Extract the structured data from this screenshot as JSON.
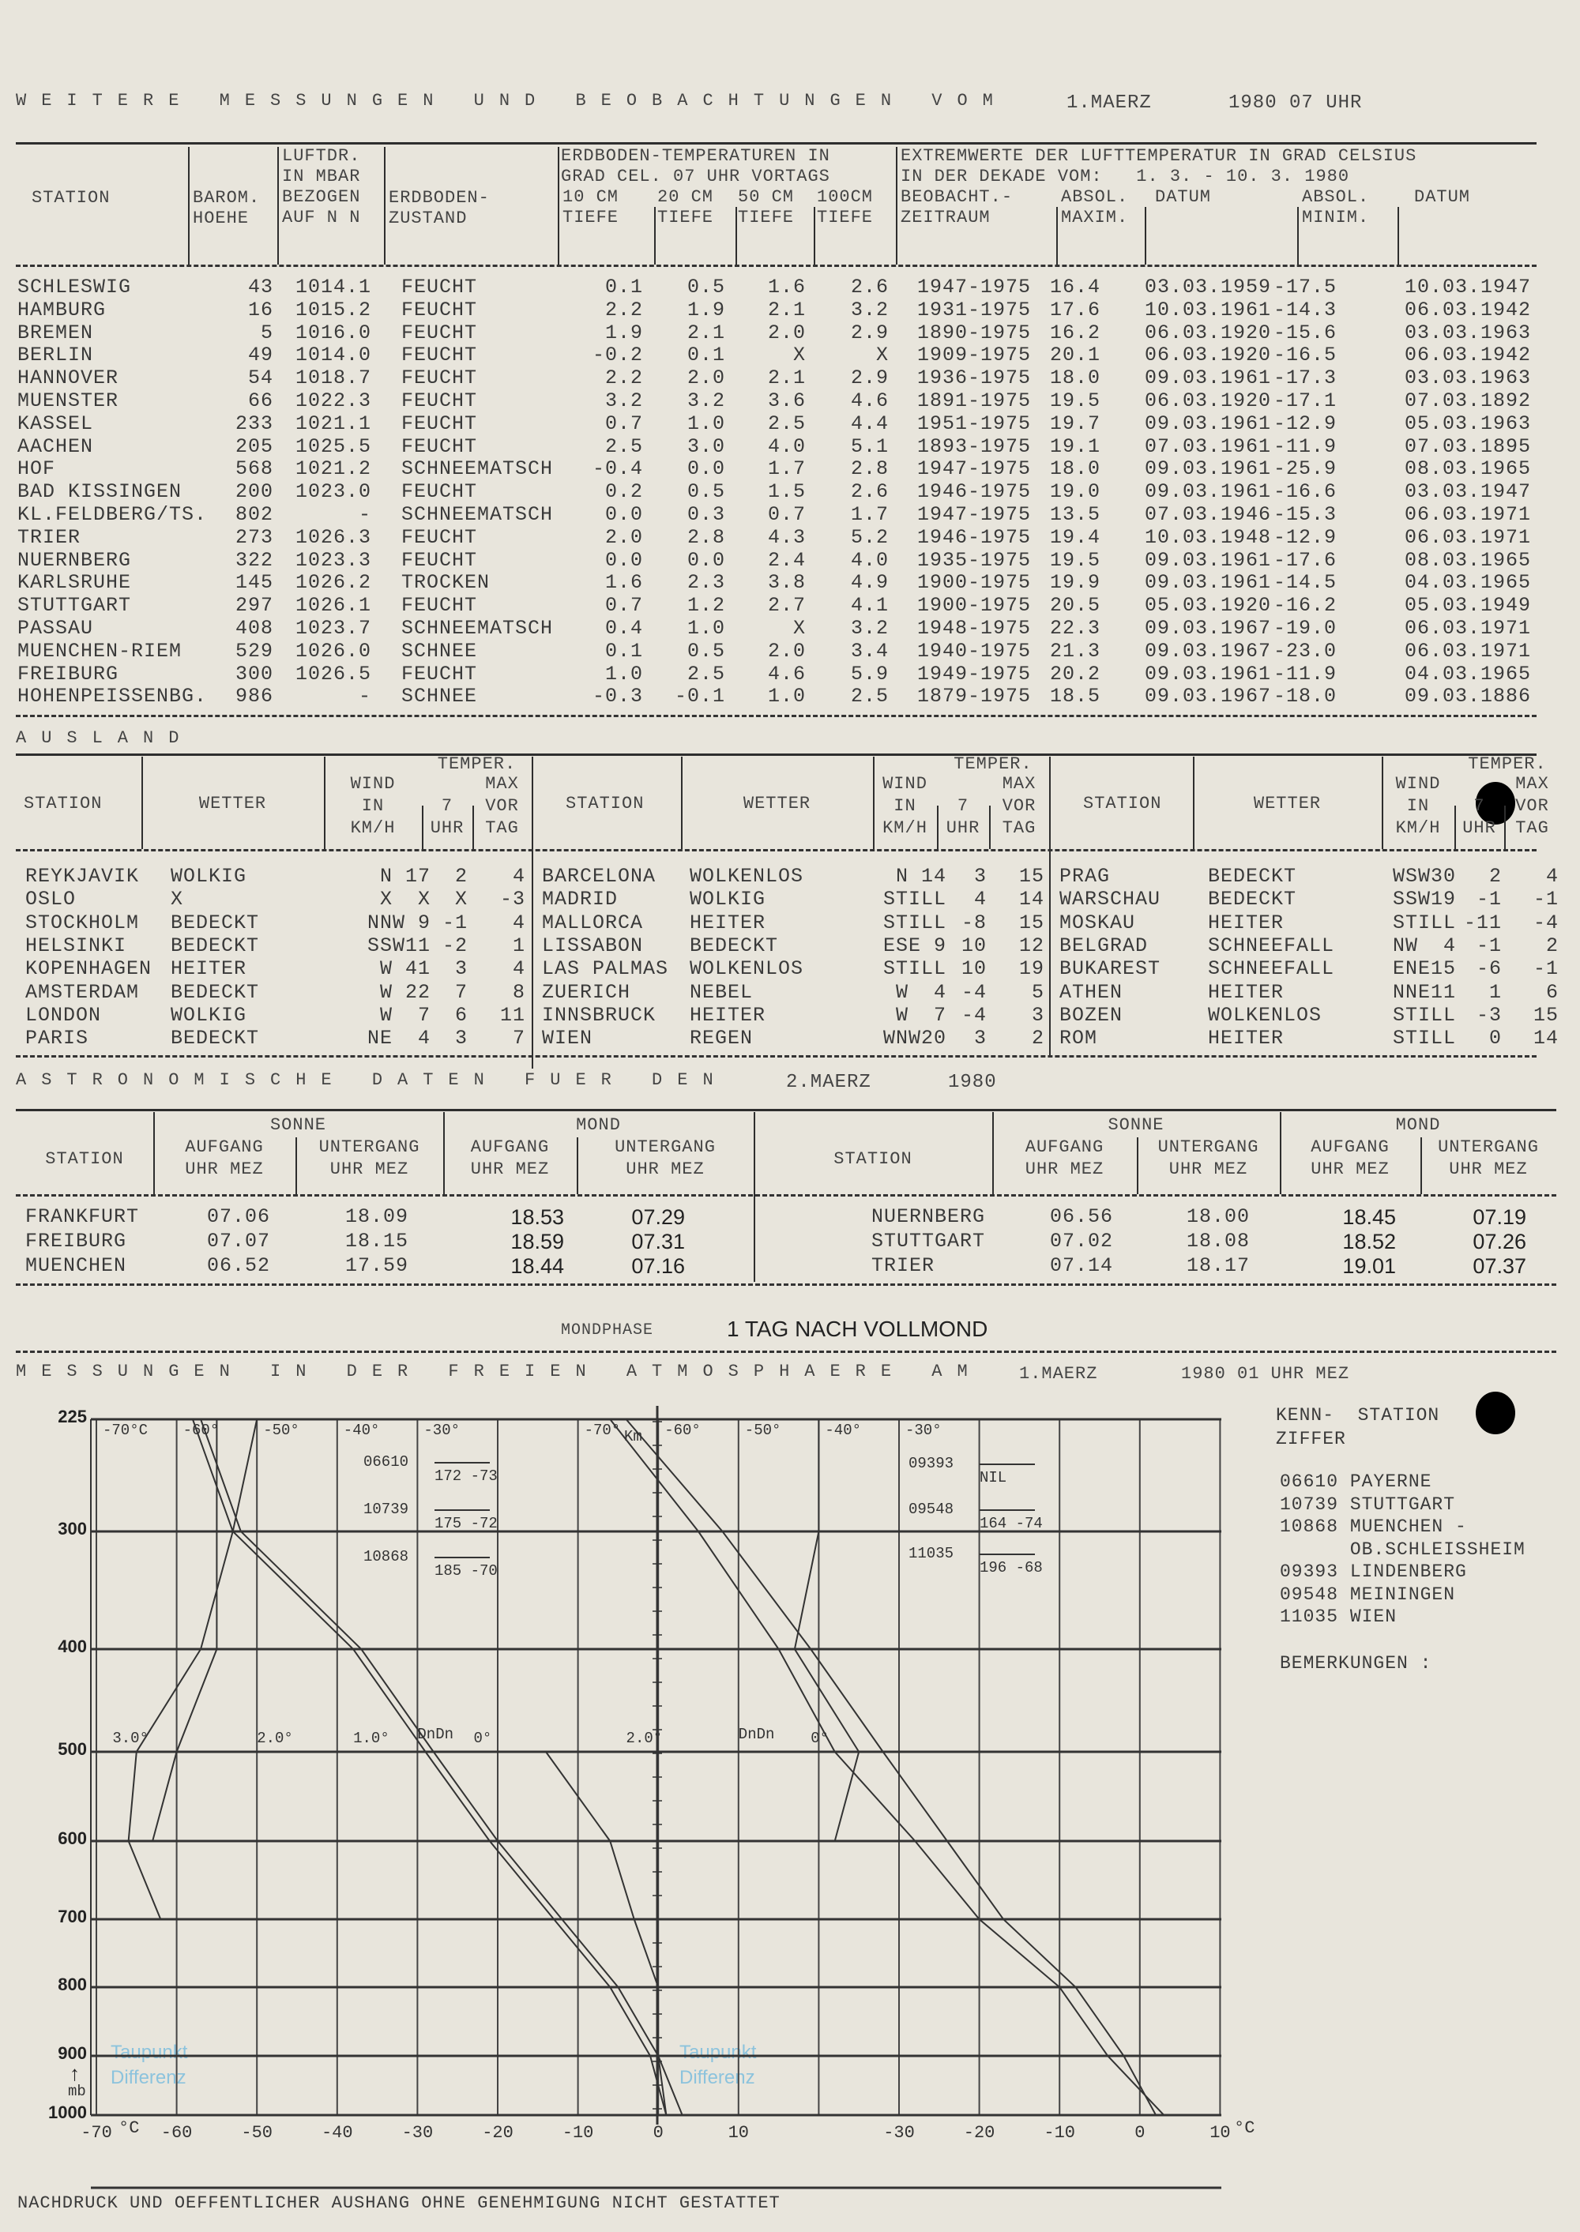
{
  "header": {
    "title": "WEITERE MESSUNGEN UND BEOBACHTUNGEN VOM",
    "date": "1.MAERZ",
    "time": "1980 07 UHR"
  },
  "inland": {
    "headers": {
      "station": "STATION",
      "baro": [
        "BAROM.",
        "HOEHE"
      ],
      "luftdruck": [
        "LUFTDR.",
        "IN MBAR",
        "BEZOGEN",
        "AUF N N"
      ],
      "zustand": [
        "ERDBODEN-",
        "ZUSTAND"
      ],
      "erdboden_title": [
        "ERDBODEN-TEMPERATUREN IN",
        "GRAD CEL. 07 UHR VORTAGS"
      ],
      "depths": [
        [
          "10 CM",
          "TIEFE"
        ],
        [
          "20 CM",
          "TIEFE"
        ],
        [
          "50 CM",
          "TIEFE"
        ],
        [
          "100CM",
          "TIEFE"
        ]
      ],
      "extrem_title": [
        "EXTREMWERTE DER LUFTTEMPERATUR IN GRAD CELSIUS",
        "IN DER DEKADE VOM:   1. 3. - 10. 3. 1980"
      ],
      "zeitraum": [
        "BEOBACHT.-",
        "ZEITRAUM"
      ],
      "max": [
        "ABSOL.",
        "MAXIM."
      ],
      "datum1": "DATUM",
      "min": [
        "ABSOL.",
        "MINIM."
      ],
      "datum2": "DATUM"
    },
    "rows": [
      [
        "SCHLESWIG",
        "43",
        "1014.1",
        "FEUCHT",
        "0.1",
        "0.5",
        "1.6",
        "2.6",
        "1947-1975",
        "16.4",
        "03.03.1959",
        "-17.5",
        "10.03.1947"
      ],
      [
        "HAMBURG",
        "16",
        "1015.2",
        "FEUCHT",
        "2.2",
        "1.9",
        "2.1",
        "3.2",
        "1931-1975",
        "17.6",
        "10.03.1961",
        "-14.3",
        "06.03.1942"
      ],
      [
        "BREMEN",
        "5",
        "1016.0",
        "FEUCHT",
        "1.9",
        "2.1",
        "2.0",
        "2.9",
        "1890-1975",
        "16.2",
        "06.03.1920",
        "-15.6",
        "03.03.1963"
      ],
      [
        "BERLIN",
        "49",
        "1014.0",
        "FEUCHT",
        "-0.2",
        "0.1",
        "X",
        "X",
        "1909-1975",
        "20.1",
        "06.03.1920",
        "-16.5",
        "06.03.1942"
      ],
      [
        "HANNOVER",
        "54",
        "1018.7",
        "FEUCHT",
        "2.2",
        "2.0",
        "2.1",
        "2.9",
        "1936-1975",
        "18.0",
        "09.03.1961",
        "-17.3",
        "03.03.1963"
      ],
      [
        "MUENSTER",
        "66",
        "1022.3",
        "FEUCHT",
        "3.2",
        "3.2",
        "3.6",
        "4.6",
        "1891-1975",
        "19.5",
        "06.03.1920",
        "-17.1",
        "07.03.1892"
      ],
      [
        "KASSEL",
        "233",
        "1021.1",
        "FEUCHT",
        "0.7",
        "1.0",
        "2.5",
        "4.4",
        "1951-1975",
        "19.7",
        "09.03.1961",
        "-12.9",
        "05.03.1963"
      ],
      [
        "AACHEN",
        "205",
        "1025.5",
        "FEUCHT",
        "2.5",
        "3.0",
        "4.0",
        "5.1",
        "1893-1975",
        "19.1",
        "07.03.1961",
        "-11.9",
        "07.03.1895"
      ],
      [
        "HOF",
        "568",
        "1021.2",
        "SCHNEEMATSCH",
        "-0.4",
        "0.0",
        "1.7",
        "2.8",
        "1947-1975",
        "18.0",
        "09.03.1961",
        "-25.9",
        "08.03.1965"
      ],
      [
        "BAD KISSINGEN",
        "200",
        "1023.0",
        "FEUCHT",
        "0.2",
        "0.5",
        "1.5",
        "2.6",
        "1946-1975",
        "19.0",
        "09.03.1961",
        "-16.6",
        "03.03.1947"
      ],
      [
        "KL.FELDBERG/TS.",
        "802",
        "-",
        "SCHNEEMATSCH",
        "0.0",
        "0.3",
        "0.7",
        "1.7",
        "1947-1975",
        "13.5",
        "07.03.1946",
        "-15.3",
        "06.03.1971"
      ],
      [
        "TRIER",
        "273",
        "1026.3",
        "FEUCHT",
        "2.0",
        "2.8",
        "4.3",
        "5.2",
        "1946-1975",
        "19.4",
        "10.03.1948",
        "-12.9",
        "06.03.1971"
      ],
      [
        "NUERNBERG",
        "322",
        "1023.3",
        "FEUCHT",
        "0.0",
        "0.0",
        "2.4",
        "4.0",
        "1935-1975",
        "19.5",
        "09.03.1961",
        "-17.6",
        "08.03.1965"
      ],
      [
        "KARLSRUHE",
        "145",
        "1026.2",
        "TROCKEN",
        "1.6",
        "2.3",
        "3.8",
        "4.9",
        "1900-1975",
        "19.9",
        "09.03.1961",
        "-14.5",
        "04.03.1965"
      ],
      [
        "STUTTGART",
        "297",
        "1026.1",
        "FEUCHT",
        "0.7",
        "1.2",
        "2.7",
        "4.1",
        "1900-1975",
        "20.5",
        "05.03.1920",
        "-16.2",
        "05.03.1949"
      ],
      [
        "PASSAU",
        "408",
        "1023.7",
        "SCHNEEMATSCH",
        "0.4",
        "1.0",
        "X",
        "3.2",
        "1948-1975",
        "22.3",
        "09.03.1967",
        "-19.0",
        "06.03.1971"
      ],
      [
        "MUENCHEN-RIEM",
        "529",
        "1026.0",
        "SCHNEE",
        "0.1",
        "0.5",
        "2.0",
        "3.4",
        "1940-1975",
        "21.3",
        "09.03.1967",
        "-23.0",
        "06.03.1971"
      ],
      [
        "FREIBURG",
        "300",
        "1026.5",
        "FEUCHT",
        "1.0",
        "2.5",
        "4.6",
        "5.9",
        "1949-1975",
        "20.2",
        "09.03.1961",
        "-11.9",
        "04.03.1965"
      ],
      [
        "HOHENPEISSENBG.",
        "986",
        "-",
        "SCHNEE",
        "-0.3",
        "-0.1",
        "1.0",
        "2.5",
        "1879-1975",
        "18.5",
        "09.03.1967",
        "-18.0",
        "09.03.1886"
      ]
    ]
  },
  "ausland": {
    "title": "AUSLAND",
    "headers": {
      "station": "STATION",
      "wetter": "WETTER",
      "temper": "TEMPER.",
      "wind": [
        "WIND",
        "IN",
        "KM/H"
      ],
      "t7": [
        "7",
        "UHR"
      ],
      "max": [
        "MAX",
        "VOR",
        "TAG"
      ]
    },
    "groups": [
      [
        [
          "REYKJAVIK",
          "WOLKIG",
          "N 17",
          "2",
          "4"
        ],
        [
          "OSLO",
          "X",
          "X  X",
          "X",
          "-3"
        ],
        [
          "STOCKHOLM",
          "BEDECKT",
          "NNW 9",
          "-1",
          "4"
        ],
        [
          "HELSINKI",
          "BEDECKT",
          "SSW11",
          "-2",
          "1"
        ],
        [
          "KOPENHAGEN",
          "HEITER",
          "W 41",
          "3",
          "4"
        ],
        [
          "AMSTERDAM",
          "BEDECKT",
          "W 22",
          "7",
          "8"
        ],
        [
          "LONDON",
          "WOLKIG",
          "W  7",
          "6",
          "11"
        ],
        [
          "PARIS",
          "BEDECKT",
          "NE  4",
          "3",
          "7"
        ]
      ],
      [
        [
          "BARCELONA",
          "WOLKENLOS",
          "N 14",
          "3",
          "15"
        ],
        [
          "MADRID",
          "WOLKIG",
          "STILL",
          "4",
          "14"
        ],
        [
          "MALLORCA",
          "HEITER",
          "STILL",
          "-8",
          "15"
        ],
        [
          "LISSABON",
          "BEDECKT",
          "ESE 9",
          "10",
          "12"
        ],
        [
          "LAS PALMAS",
          "WOLKENLOS",
          "STILL",
          "10",
          "19"
        ],
        [
          "ZUERICH",
          "NEBEL",
          "W  4",
          "-4",
          "5"
        ],
        [
          "INNSBRUCK",
          "HEITER",
          "W  7",
          "-4",
          "3"
        ],
        [
          "WIEN",
          "REGEN",
          "WNW20",
          "3",
          "2"
        ]
      ],
      [
        [
          "PRAG",
          "BEDECKT",
          "WSW30",
          "2",
          "4"
        ],
        [
          "WARSCHAU",
          "BEDECKT",
          "SSW19",
          "-1",
          "-1"
        ],
        [
          "MOSKAU",
          "HEITER",
          "STILL",
          "-11",
          "-4"
        ],
        [
          "BELGRAD",
          "SCHNEEFALL",
          "NW  4",
          "-1",
          "2"
        ],
        [
          "BUKAREST",
          "SCHNEEFALL",
          "ENE15",
          "-6",
          "-1"
        ],
        [
          "ATHEN",
          "HEITER",
          "NNE11",
          "1",
          "6"
        ],
        [
          "BOZEN",
          "WOLKENLOS",
          "STILL",
          "-3",
          "15"
        ],
        [
          "ROM",
          "HEITER",
          "STILL",
          "0",
          "14"
        ]
      ]
    ]
  },
  "astro": {
    "title": "ASTRONOMISCHE DATEN FUER DEN",
    "date": "2.MAERZ",
    "year": "1980",
    "headers": {
      "station": "STATION",
      "sonne": "SONNE",
      "mond": "MOND",
      "aufgang": [
        "AUFGANG",
        "UHR MEZ"
      ],
      "untergang": [
        "UNTERGANG",
        "UHR MEZ"
      ]
    },
    "left": [
      [
        "FRANKFURT",
        "07.06",
        "18.09",
        "18.53",
        "07.29"
      ],
      [
        "FREIBURG",
        "07.07",
        "18.15",
        "18.59",
        "07.31"
      ],
      [
        "MUENCHEN",
        "06.52",
        "17.59",
        "18.44",
        "07.16"
      ]
    ],
    "right": [
      [
        "NUERNBERG",
        "06.56",
        "18.00",
        "18.45",
        "07.19"
      ],
      [
        "STUTTGART",
        "07.02",
        "18.08",
        "18.52",
        "07.26"
      ],
      [
        "TRIER",
        "07.14",
        "18.17",
        "19.01",
        "07.37"
      ]
    ],
    "mondphase_label": "MONDPHASE",
    "mondphase": "1 TAG NACH VOLLMOND"
  },
  "aero": {
    "title": "MESSUNGEN IN DER FREIEN ATMOSPHAERE AM",
    "date": "1.MAERZ",
    "time": "1980 01 UHR MEZ",
    "pressure_levels": [
      "225",
      "300",
      "400",
      "500",
      "600",
      "700",
      "800",
      "900",
      "1000"
    ],
    "pressure_unit": "mb",
    "bottom_ticks": [
      "-70",
      "-60",
      "-50",
      "-40",
      "-30",
      "-20",
      "-10",
      "0",
      "10",
      "-30",
      "-20",
      "-10",
      "0",
      "10"
    ],
    "bottom_unit": "°C",
    "top_ticks_left": [
      "-70°C",
      "-60°",
      "-50°",
      "-40°",
      "-30°"
    ],
    "top_ticks_right": [
      "-70°",
      "-60°",
      "-50°",
      "-40°",
      "-30°"
    ],
    "km_label": "Km",
    "dndn_left": [
      "3.0°",
      "2.0°",
      "1.0°",
      "DnDn",
      "0°"
    ],
    "dndn_right": [
      "2.0°",
      "DnDn",
      "0°"
    ],
    "taupunkt": [
      "Taupunkt",
      "Differenz"
    ],
    "tropopause": [
      {
        "id": "06610",
        "value": "172 -73"
      },
      {
        "id": "10739",
        "value": "175 -72"
      },
      {
        "id": "10868",
        "value": "185 -70"
      },
      {
        "id": "09393",
        "value": "NIL"
      },
      {
        "id": "09548",
        "value": "164 -74"
      },
      {
        "id": "11035",
        "value": "196 -68"
      }
    ],
    "profiles": {
      "left": [
        [
          [
            -57,
            225
          ],
          [
            -52,
            300
          ],
          [
            -37,
            400
          ],
          [
            -28,
            500
          ],
          [
            -20,
            600
          ],
          [
            -12,
            700
          ],
          [
            -5,
            800
          ],
          [
            0,
            900
          ],
          [
            3,
            1000
          ]
        ],
        [
          [
            -58,
            225
          ],
          [
            -53,
            300
          ],
          [
            -38,
            400
          ],
          [
            -29,
            500
          ],
          [
            -21,
            600
          ],
          [
            -13,
            700
          ],
          [
            -6,
            800
          ],
          [
            -1,
            900
          ],
          [
            1,
            1000
          ]
        ],
        [
          [
            -55,
            225
          ],
          [
            -55,
            300
          ],
          [
            -55,
            400
          ],
          [
            -60,
            500
          ],
          [
            -63,
            600
          ],
          [
            -68,
            660
          ],
          [
            -62,
            700
          ],
          [
            -45,
            800
          ],
          [
            -43,
            900
          ],
          [
            -42,
            1000
          ]
        ],
        [
          [
            -50,
            225
          ],
          [
            -53,
            300
          ],
          [
            -57,
            400
          ],
          [
            -65,
            500
          ],
          [
            -66,
            600
          ],
          [
            -62,
            700
          ],
          [
            -45,
            760
          ],
          [
            -40,
            800
          ],
          [
            -40,
            1000
          ]
        ],
        [
          [
            -14,
            500
          ],
          [
            -6,
            600
          ],
          [
            -3,
            700
          ],
          [
            0,
            800
          ],
          [
            0,
            900
          ],
          [
            1,
            1000
          ]
        ]
      ],
      "right": [
        [
          [
            -66,
            225
          ],
          [
            -55,
            300
          ],
          [
            -45,
            400
          ],
          [
            -38,
            500
          ],
          [
            -28,
            600
          ],
          [
            -20,
            700
          ],
          [
            -10,
            800
          ],
          [
            -4,
            900
          ],
          [
            3,
            1000
          ]
        ],
        [
          [
            -64,
            225
          ],
          [
            -52,
            300
          ],
          [
            -41,
            400
          ],
          [
            -32,
            500
          ],
          [
            -24,
            600
          ],
          [
            -17,
            700
          ],
          [
            -8,
            800
          ],
          [
            -2,
            900
          ],
          [
            2,
            1000
          ]
        ],
        [
          [
            -40,
            225
          ],
          [
            -40,
            300
          ],
          [
            -43,
            400
          ],
          [
            -35,
            500
          ],
          [
            -38,
            600
          ],
          [
            -45,
            650
          ],
          [
            -40,
            700
          ],
          [
            -35,
            800
          ],
          [
            -33,
            900
          ],
          [
            -34,
            1000
          ]
        ]
      ]
    },
    "legend": {
      "header": [
        "KENN-  STATION",
        "ZIFFER"
      ],
      "stations": [
        "06610 PAYERNE",
        "10739 STUTTGART",
        "10868 MUENCHEN -",
        "      OB.SCHLEISSHEIM",
        "09393 LINDENBERG",
        "09548 MEININGEN",
        "11035 WIEN"
      ],
      "remarks": "BEMERKUNGEN :"
    }
  },
  "footer": "NACHDRUCK UND OEFFENTLICHER AUSHANG OHNE GENEHMIGUNG NICHT GESTATTET",
  "colors": {
    "paper": "#e8e5dc",
    "ink": "#3a3a3a",
    "taupunkt": "#8cc3dd"
  }
}
